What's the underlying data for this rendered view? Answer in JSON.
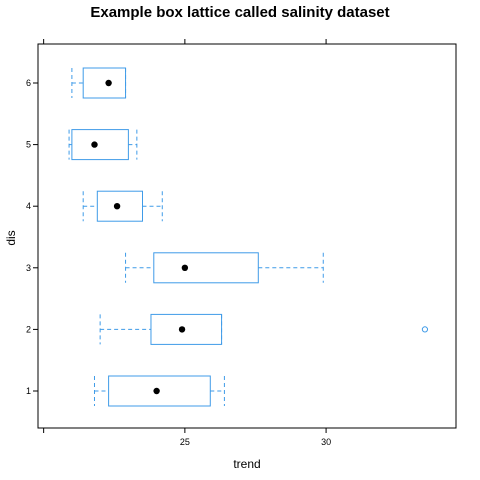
{
  "chart_data": {
    "type": "box",
    "title": "Example box lattice called salinity dataset",
    "xlabel": "trend",
    "ylabel": "dis",
    "xlim": [
      19.8,
      34.6
    ],
    "x_ticks": [
      25,
      30
    ],
    "categories": [
      "1",
      "2",
      "3",
      "4",
      "5",
      "6"
    ],
    "boxes": [
      {
        "category": "1",
        "whisker_low": 21.8,
        "q1": 22.3,
        "median": 24.0,
        "q3": 25.9,
        "whisker_high": 26.4,
        "outliers": []
      },
      {
        "category": "2",
        "whisker_low": 22.0,
        "q1": 23.8,
        "median": 24.9,
        "q3": 26.3,
        "whisker_high": 26.3,
        "outliers": [
          33.5
        ]
      },
      {
        "category": "3",
        "whisker_low": 22.9,
        "q1": 23.9,
        "median": 25.0,
        "q3": 27.6,
        "whisker_high": 29.9,
        "outliers": []
      },
      {
        "category": "4",
        "whisker_low": 21.4,
        "q1": 21.9,
        "median": 22.6,
        "q3": 23.5,
        "whisker_high": 24.2,
        "outliers": []
      },
      {
        "category": "5",
        "whisker_low": 20.9,
        "q1": 21.0,
        "median": 21.8,
        "q3": 23.0,
        "whisker_high": 23.3,
        "outliers": []
      },
      {
        "category": "6",
        "whisker_low": 21.0,
        "q1": 21.4,
        "median": 22.3,
        "q3": 22.9,
        "whisker_high": 22.9,
        "outliers": []
      }
    ],
    "colors": {
      "box": "#3F9BE8",
      "median": "#000000",
      "frame": "#000000"
    },
    "grid": false,
    "legend": "none"
  }
}
